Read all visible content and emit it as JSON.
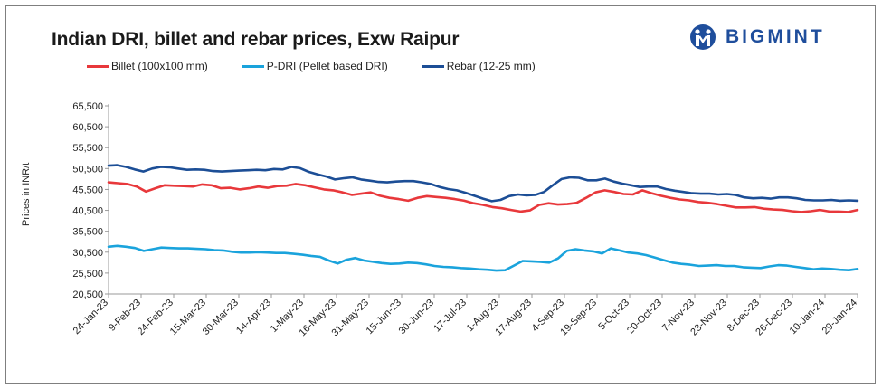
{
  "chart_data": {
    "type": "line",
    "title": "Indian DRI, billet and rebar prices, Exw Raipur",
    "ylabel": "Prices in INR/t",
    "xlabel": "",
    "ylim": [
      20500,
      65500
    ],
    "yticks": [
      "20,500",
      "25,500",
      "30,500",
      "35,500",
      "40,500",
      "45,500",
      "50,500",
      "55,500",
      "60,500",
      "65,500"
    ],
    "ytick_values": [
      20500,
      25500,
      30500,
      35500,
      40500,
      45500,
      50500,
      55500,
      60500,
      65500
    ],
    "x_tick_labels": [
      "24-Jan-23",
      "9-Feb-23",
      "24-Feb-23",
      "15-Mar-23",
      "30-Mar-23",
      "14-Apr-23",
      "1-May-23",
      "16-May-23",
      "31-May-23",
      "15-Jun-23",
      "30-Jun-23",
      "17-Jul-23",
      "1-Aug-23",
      "17-Aug-23",
      "4-Sep-23",
      "19-Sep-23",
      "5-Oct-23",
      "20-Oct-23",
      "7-Nov-23",
      "23-Nov-23",
      "8-Dec-23",
      "26-Dec-23",
      "10-Jan-24",
      "29-Jan-24"
    ],
    "series": [
      {
        "name": "Billet (100x100 mm)",
        "color": "#e8383b",
        "values": [
          47200,
          47000,
          46800,
          46200,
          45000,
          45800,
          46500,
          46400,
          46300,
          46200,
          46700,
          46500,
          45800,
          45900,
          45500,
          45800,
          46200,
          45900,
          46300,
          46400,
          46800,
          46500,
          46000,
          45500,
          45300,
          44800,
          44200,
          44500,
          44800,
          44000,
          43500,
          43200,
          42800,
          43500,
          43900,
          43700,
          43500,
          43200,
          42800,
          42200,
          41800,
          41300,
          41000,
          40600,
          40200,
          40500,
          41800,
          42200,
          41900,
          42000,
          42300,
          43500,
          44800,
          45300,
          44900,
          44400,
          44300,
          45300,
          44600,
          44000,
          43500,
          43100,
          42900,
          42500,
          42300,
          42000,
          41600,
          41200,
          41200,
          41300,
          40900,
          40700,
          40600,
          40300,
          40100,
          40300,
          40600,
          40200,
          40200,
          40100,
          40600
        ]
      },
      {
        "name": "P-DRI (Pellet based DRI)",
        "color": "#1aa3dc",
        "values": [
          31800,
          32000,
          31800,
          31500,
          30800,
          31200,
          31600,
          31500,
          31400,
          31400,
          31300,
          31200,
          31000,
          30900,
          30600,
          30400,
          30400,
          30500,
          30400,
          30300,
          30300,
          30100,
          29900,
          29600,
          29400,
          28500,
          27800,
          28700,
          29100,
          28500,
          28200,
          27900,
          27700,
          27800,
          28000,
          27900,
          27600,
          27200,
          27000,
          26900,
          26700,
          26600,
          26400,
          26300,
          26100,
          26200,
          27300,
          28400,
          28300,
          28200,
          28000,
          29000,
          30800,
          31200,
          30900,
          30700,
          30200,
          31400,
          30900,
          30400,
          30200,
          29800,
          29200,
          28600,
          28000,
          27700,
          27500,
          27200,
          27300,
          27400,
          27200,
          27200,
          26900,
          26800,
          26700,
          27100,
          27400,
          27300,
          27000,
          26700,
          26400,
          26600,
          26500,
          26300,
          26200,
          26500
        ]
      },
      {
        "name": "Rebar (12-25 mm)",
        "color": "#1c4e96",
        "values": [
          51200,
          51300,
          50900,
          50300,
          49800,
          50500,
          50900,
          50800,
          50500,
          50200,
          50300,
          50200,
          49900,
          49800,
          49900,
          50000,
          50100,
          50200,
          50100,
          50400,
          50300,
          50900,
          50600,
          49700,
          49100,
          48600,
          47900,
          48200,
          48400,
          47900,
          47600,
          47300,
          47200,
          47400,
          47500,
          47500,
          47200,
          46800,
          46100,
          45600,
          45300,
          44700,
          44000,
          43300,
          42700,
          43000,
          43900,
          44300,
          44100,
          44200,
          44900,
          46500,
          48000,
          48400,
          48300,
          47700,
          47700,
          48100,
          47400,
          46900,
          46500,
          46100,
          46200,
          46200,
          45600,
          45200,
          44900,
          44600,
          44500,
          44500,
          44300,
          44400,
          44200,
          43600,
          43400,
          43500,
          43300,
          43600,
          43600,
          43400,
          43000,
          42900,
          42900,
          43000,
          42800,
          42900,
          42800
        ]
      }
    ]
  },
  "brand": {
    "name": "BIGMINT",
    "color": "#1f4e9c"
  }
}
